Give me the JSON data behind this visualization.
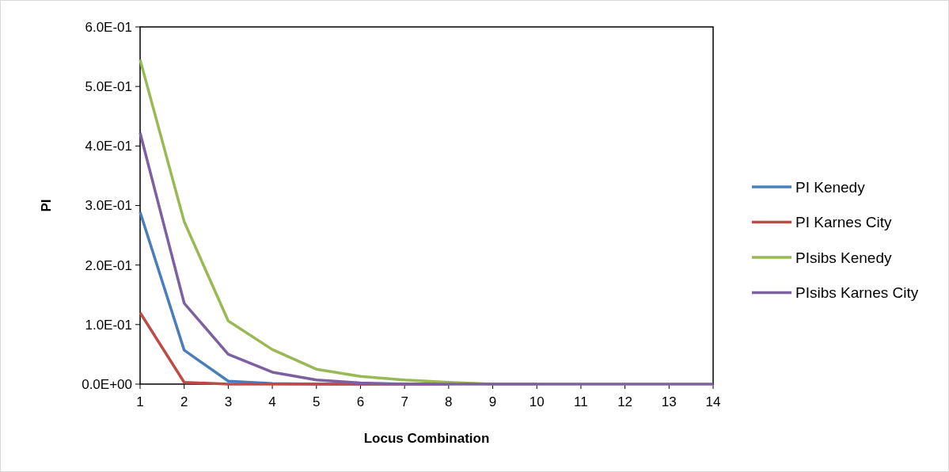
{
  "chart_data": {
    "type": "line",
    "xlabel": "Locus Combination",
    "ylabel": "PI",
    "x": [
      1,
      2,
      3,
      4,
      5,
      6,
      7,
      8,
      9,
      10,
      11,
      12,
      13,
      14
    ],
    "series": [
      {
        "name": "PI Kenedy",
        "color": "#4a7ebb",
        "values": [
          0.289,
          0.057,
          0.005,
          0.001,
          0,
          0,
          0,
          0,
          null,
          null,
          null,
          null,
          null,
          null
        ]
      },
      {
        "name": "PI Karnes City",
        "color": "#be4b48",
        "values": [
          0.12,
          0.003,
          0,
          0,
          0,
          0,
          0,
          0,
          null,
          null,
          null,
          null,
          null,
          null
        ]
      },
      {
        "name": "PIsibs Kenedy",
        "color": "#98b954",
        "values": [
          0.545,
          0.273,
          0.106,
          0.058,
          0.025,
          0.013,
          0.007,
          0.003,
          0,
          0,
          null,
          null,
          null,
          null
        ]
      },
      {
        "name": "PIsibs Karnes City",
        "color": "#7d60a0",
        "values": [
          0.422,
          0.136,
          0.05,
          0.02,
          0.007,
          0.002,
          0,
          0,
          0,
          0,
          0,
          0,
          0,
          0
        ]
      }
    ],
    "xlim": [
      1,
      14
    ],
    "xticks": [
      1,
      2,
      3,
      4,
      5,
      6,
      7,
      8,
      9,
      10,
      11,
      12,
      13,
      14
    ],
    "ylim": [
      0,
      0.6
    ],
    "yticks": [
      {
        "value": 0,
        "label": "0.0E+00"
      },
      {
        "value": 0.1,
        "label": "1.0E-01"
      },
      {
        "value": 0.2,
        "label": "2.0E-01"
      },
      {
        "value": 0.3,
        "label": "3.0E-01"
      },
      {
        "value": 0.4,
        "label": "4.0E-01"
      },
      {
        "value": 0.5,
        "label": "5.0E-01"
      },
      {
        "value": 0.6,
        "label": "6.0E-01"
      }
    ],
    "grid": false,
    "legend": "right",
    "marker": "none",
    "line_style": "solid"
  }
}
